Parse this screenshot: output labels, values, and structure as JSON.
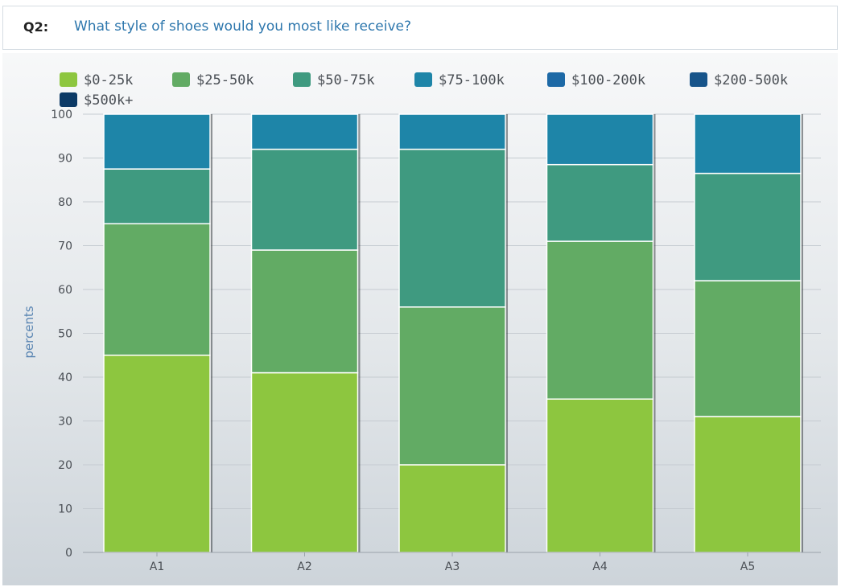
{
  "question": {
    "label": "Q2:",
    "text": "What style of shoes would you most like receive?"
  },
  "chart_data": {
    "type": "bar",
    "stacked": true,
    "categories": [
      "A1",
      "A2",
      "A3",
      "A4",
      "A5"
    ],
    "ylabel": "percents",
    "ylim": [
      0,
      100
    ],
    "yticks": [
      0,
      10,
      20,
      30,
      40,
      50,
      60,
      70,
      80,
      90,
      100
    ],
    "grid": true,
    "legend_position": "top-left",
    "series": [
      {
        "name": "$0-25k",
        "color": "#8dc63f",
        "values": [
          45,
          41,
          20,
          35,
          31
        ]
      },
      {
        "name": "$25-50k",
        "color": "#62ab64",
        "values": [
          30,
          28,
          36,
          36,
          31
        ]
      },
      {
        "name": "$50-75k",
        "color": "#3f9a80",
        "values": [
          12.5,
          23,
          36,
          17.5,
          24.5
        ]
      },
      {
        "name": "$75-100k",
        "color": "#1e85a8",
        "values": [
          12.5,
          8,
          8,
          11.5,
          13.5
        ]
      },
      {
        "name": "$100-200k",
        "color": "#1d69a6",
        "values": [
          0,
          0,
          0,
          0,
          0
        ]
      },
      {
        "name": "$200-500k",
        "color": "#17548a",
        "values": [
          0,
          0,
          0,
          0,
          0
        ]
      },
      {
        "name": "$500k+",
        "color": "#0c3a66",
        "values": [
          0,
          0,
          0,
          0,
          0
        ]
      }
    ]
  }
}
